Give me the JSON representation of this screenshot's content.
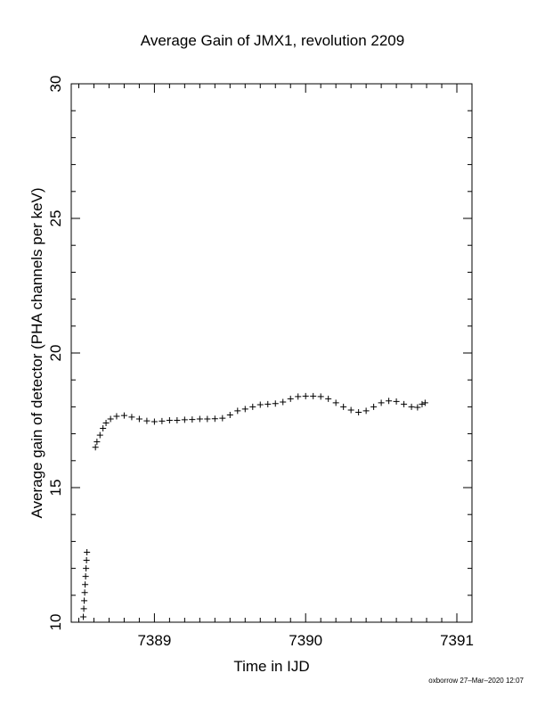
{
  "chart_data": {
    "type": "scatter",
    "title": "Average Gain of JMX1, revolution 2209",
    "xlabel": "Time in IJD",
    "ylabel": "Average gain of detector (PHA channels per keV)",
    "xlim": [
      7388.45,
      7391.1
    ],
    "ylim": [
      10,
      30
    ],
    "x_ticks": [
      7389,
      7390,
      7391
    ],
    "y_ticks": [
      10,
      15,
      20,
      25,
      30
    ],
    "marker": "+",
    "grid": false,
    "series": [
      {
        "points": [
          [
            7388.53,
            10.2
          ],
          [
            7388.533,
            10.5
          ],
          [
            7388.536,
            10.8
          ],
          [
            7388.539,
            11.1
          ],
          [
            7388.542,
            11.4
          ],
          [
            7388.545,
            11.7
          ],
          [
            7388.548,
            12.0
          ],
          [
            7388.551,
            12.3
          ],
          [
            7388.554,
            12.6
          ],
          [
            7388.61,
            16.5
          ],
          [
            7388.62,
            16.7
          ],
          [
            7388.64,
            16.95
          ],
          [
            7388.66,
            17.2
          ],
          [
            7388.68,
            17.4
          ],
          [
            7388.71,
            17.55
          ],
          [
            7388.75,
            17.65
          ],
          [
            7388.8,
            17.68
          ],
          [
            7388.85,
            17.62
          ],
          [
            7388.9,
            17.55
          ],
          [
            7388.95,
            17.48
          ],
          [
            7389.0,
            17.45
          ],
          [
            7389.05,
            17.47
          ],
          [
            7389.1,
            17.5
          ],
          [
            7389.15,
            17.5
          ],
          [
            7389.2,
            17.52
          ],
          [
            7389.25,
            17.53
          ],
          [
            7389.3,
            17.55
          ],
          [
            7389.35,
            17.55
          ],
          [
            7389.4,
            17.56
          ],
          [
            7389.45,
            17.58
          ],
          [
            7389.5,
            17.7
          ],
          [
            7389.55,
            17.85
          ],
          [
            7389.6,
            17.92
          ],
          [
            7389.65,
            18.0
          ],
          [
            7389.7,
            18.08
          ],
          [
            7389.75,
            18.1
          ],
          [
            7389.8,
            18.12
          ],
          [
            7389.85,
            18.18
          ],
          [
            7389.9,
            18.3
          ],
          [
            7389.95,
            18.38
          ],
          [
            7390.0,
            18.4
          ],
          [
            7390.05,
            18.4
          ],
          [
            7390.1,
            18.38
          ],
          [
            7390.15,
            18.3
          ],
          [
            7390.2,
            18.15
          ],
          [
            7390.25,
            18.0
          ],
          [
            7390.3,
            17.88
          ],
          [
            7390.35,
            17.8
          ],
          [
            7390.4,
            17.85
          ],
          [
            7390.45,
            18.0
          ],
          [
            7390.5,
            18.15
          ],
          [
            7390.55,
            18.22
          ],
          [
            7390.6,
            18.2
          ],
          [
            7390.65,
            18.1
          ],
          [
            7390.7,
            18.0
          ],
          [
            7390.74,
            17.98
          ],
          [
            7390.77,
            18.1
          ],
          [
            7390.79,
            18.15
          ]
        ]
      }
    ]
  },
  "footer_text": "oxborrow 27–Mar–2020 12:07"
}
